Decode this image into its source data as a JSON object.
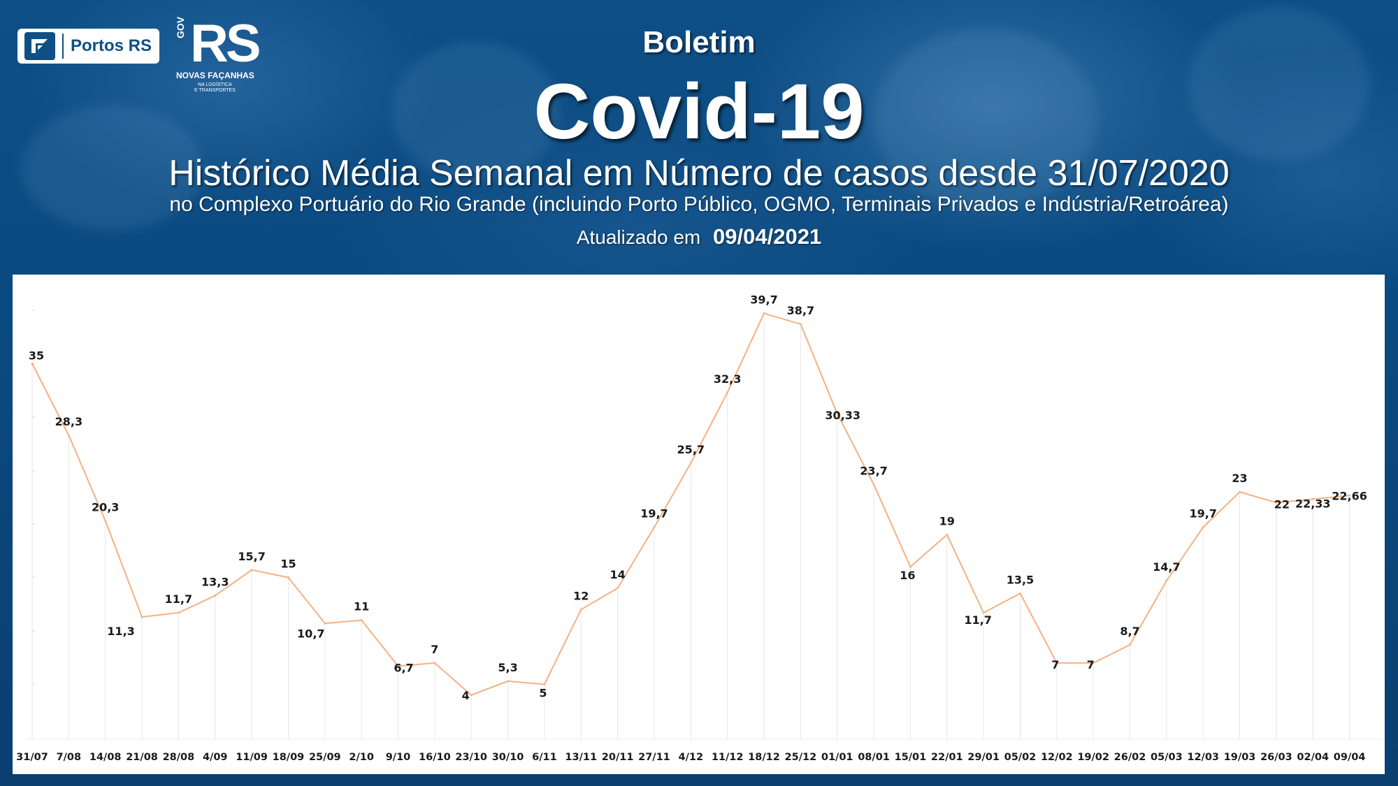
{
  "header": {
    "portos_logo_text": "Portos RS",
    "rs_logo": {
      "gov": "GOV",
      "mark": "RS",
      "tagline": "NOVAS FAÇANHAS",
      "sub_line1": "NA LOGÍSTICA",
      "sub_line2": "E TRANSPORTES"
    },
    "title_small": "Boletim",
    "title_big": "Covid-19",
    "subtitle": "Histórico Média Semanal em Número de casos desde 31/07/2020",
    "subtitle2": "no Complexo Portuário do Rio Grande (incluindo Porto Público, OGMO, Terminais Privados e Indústria/Retroárea)",
    "updated_label": "Atualizado em",
    "updated_date": "09/04/2021"
  },
  "colors": {
    "background": "#0e4f86",
    "line": "#f4b183",
    "gridline": "#e6e6e6",
    "label": "#1a1a1a"
  },
  "chart_data": {
    "type": "line",
    "title": "",
    "xlabel": "",
    "ylabel": "",
    "ylim": [
      0,
      45
    ],
    "grid": "vertical",
    "legend": "none",
    "categories": [
      "31/07",
      "7/08",
      "14/08",
      "21/08",
      "28/08",
      "4/09",
      "11/09",
      "18/09",
      "25/09",
      "2/10",
      "9/10",
      "16/10",
      "23/10",
      "30/10",
      "6/11",
      "13/11",
      "20/11",
      "27/11",
      "4/12",
      "11/12",
      "18/12",
      "25/12",
      "01/01",
      "08/01",
      "15/01",
      "22/01",
      "29/01",
      "05/02",
      "12/02",
      "19/02",
      "26/02",
      "05/03",
      "12/03",
      "19/03",
      "26/03",
      "02/04",
      "09/04"
    ],
    "values": [
      35,
      28.3,
      20.3,
      11.3,
      11.7,
      13.3,
      15.7,
      15,
      10.7,
      11,
      6.7,
      7,
      4,
      5.3,
      5,
      12,
      14,
      19.7,
      25.7,
      32.3,
      39.7,
      38.7,
      30.33,
      23.7,
      16,
      19,
      11.7,
      13.5,
      7,
      7,
      8.7,
      14.7,
      19.7,
      23,
      22,
      22.33,
      22.66
    ],
    "data_labels": [
      "35",
      "28,3",
      "20,3",
      "11,3",
      "11,7",
      "13,3",
      "15,7",
      "15",
      "10,7",
      "11",
      "6,7",
      "7",
      "4",
      "5,3",
      "5",
      "12",
      "14",
      "19,7",
      "25,7",
      "32,3",
      "39,7",
      "38,7",
      "30,33",
      "23,7",
      "16",
      "19",
      "11,7",
      "13,5",
      "7",
      "7",
      "8,7",
      "14,7",
      "19,7",
      "23",
      "22",
      "22,33",
      "22,66"
    ]
  }
}
